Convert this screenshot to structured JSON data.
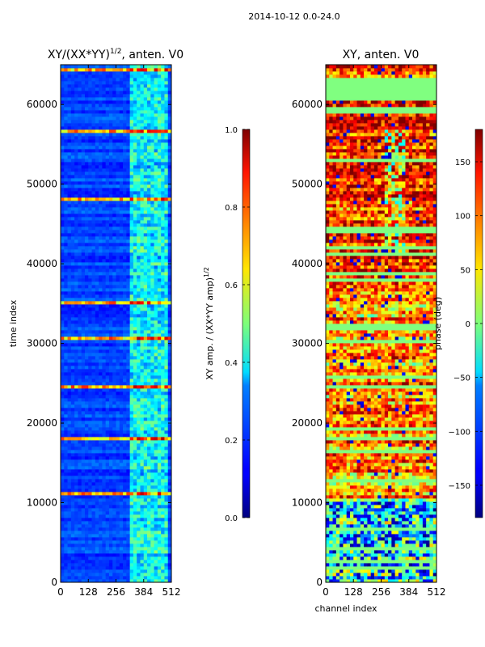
{
  "suptitle": "2014-10-12 0.0-24.0",
  "chart_data": [
    {
      "type": "heatmap",
      "title": "XY/(XX*YY)",
      "title_exponent": "1/2",
      "title_suffix": ", anten. V0",
      "xlabel": "",
      "ylabel": "time index",
      "xlim": [
        0,
        512
      ],
      "ylim": [
        0,
        65000
      ],
      "xticks": [
        0,
        128,
        256,
        384,
        512
      ],
      "yticks": [
        0,
        10000,
        20000,
        30000,
        40000,
        50000,
        60000
      ],
      "yticklabels": [
        "0",
        "10000",
        "20000",
        "30000",
        "40000",
        "50000",
        "60000"
      ],
      "colormap": "jet",
      "colorbar": {
        "label": "XY amp. / (XX*YY amp)",
        "label_exponent": "1/2",
        "range": [
          0.0,
          1.0
        ],
        "ticks": [
          0.0,
          0.2,
          0.4,
          0.6,
          0.8,
          1.0
        ],
        "ticklabels": [
          "0.0",
          "0.2",
          "0.4",
          "0.6",
          "0.8",
          "1.0"
        ]
      },
      "bright_rows": [
        10800,
        17700,
        24500,
        30500,
        35000,
        47800,
        56500,
        64300
      ]
    },
    {
      "type": "heatmap",
      "title": "XY, anten. V0",
      "xlabel": "channel index",
      "ylabel": "",
      "xlim": [
        0,
        512
      ],
      "ylim": [
        0,
        65000
      ],
      "xticks": [
        0,
        128,
        256,
        384,
        512
      ],
      "yticks": [
        0,
        10000,
        20000,
        30000,
        40000,
        50000,
        60000
      ],
      "yticklabels": [
        "0",
        "10000",
        "20000",
        "30000",
        "40000",
        "50000",
        "60000"
      ],
      "colormap": "jet",
      "colorbar": {
        "label": "phase (deg)",
        "range": [
          -180,
          180
        ],
        "ticks": [
          -150,
          -100,
          -50,
          0,
          50,
          100,
          150
        ],
        "ticklabels": [
          "−150",
          "−100",
          "−50",
          "0",
          "50",
          "100",
          "150"
        ]
      },
      "flagged_ranges": [
        [
          60500,
          63200
        ],
        [
          58800,
          59900
        ]
      ]
    }
  ],
  "colors": {
    "jet_low": "#00007f",
    "jet_high": "#7f0000",
    "flag_green": "#7dff7a"
  }
}
